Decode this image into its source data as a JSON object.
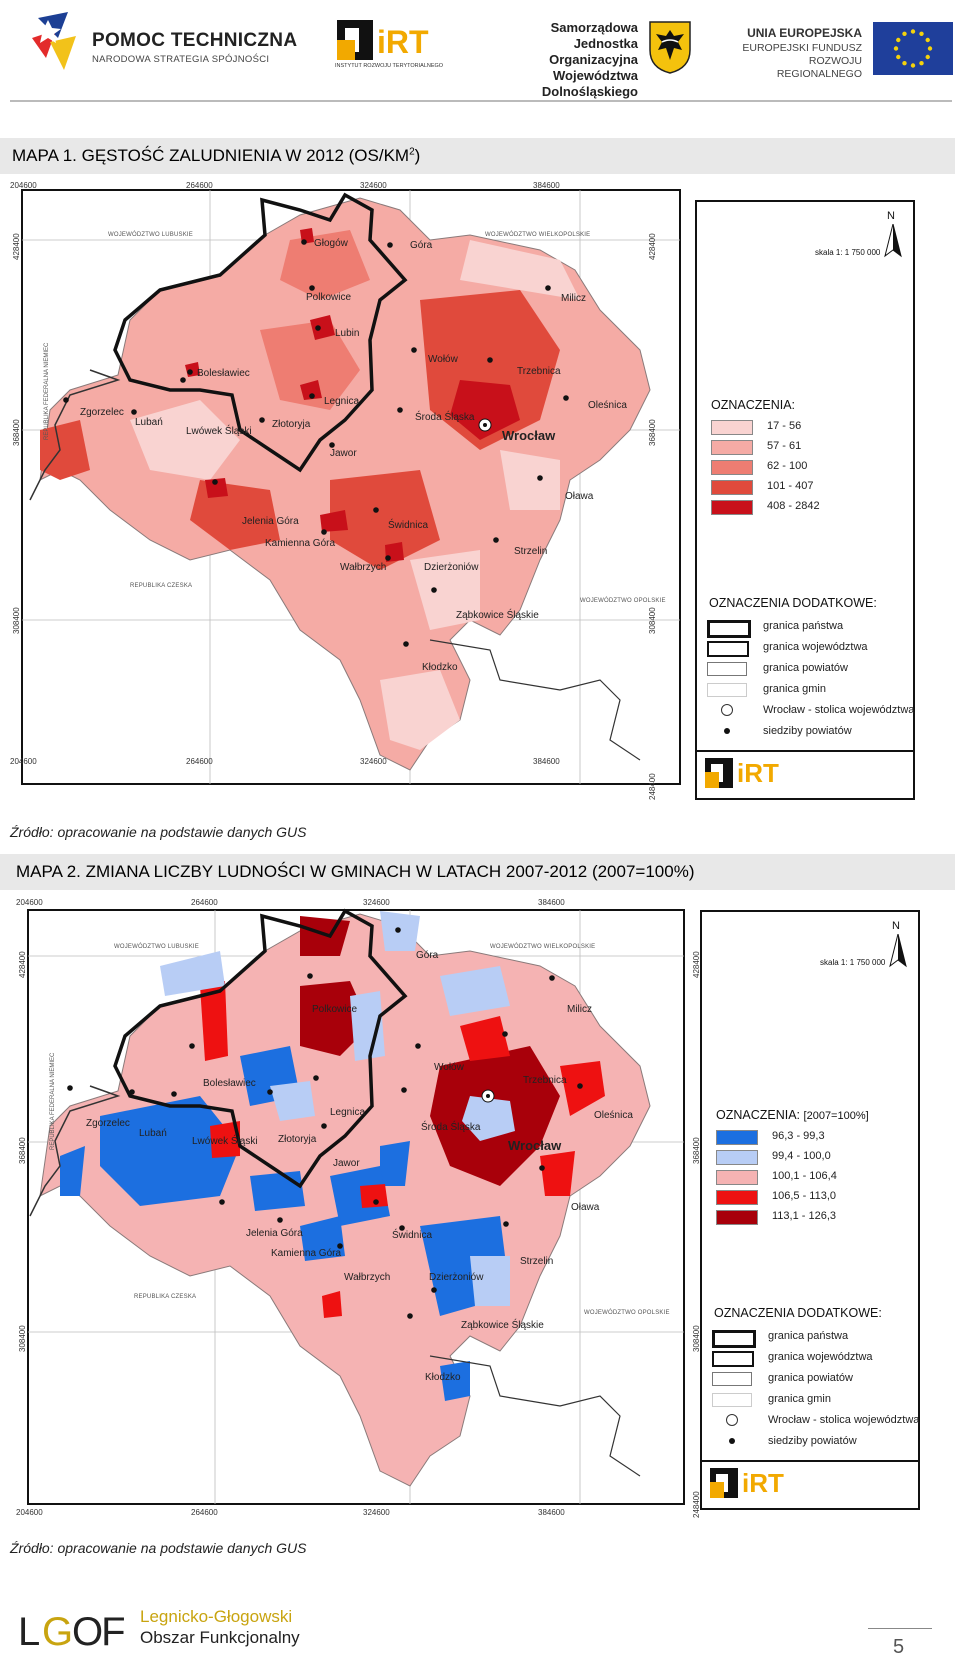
{
  "header": {
    "pomoc_title": "POMOC TECHNICZNA",
    "pomoc_sub": "NARODOWA STRATEGIA SPÓJNOŚCI",
    "irt_text": "iRT",
    "irt_sub": "INSTYTUT ROZWOJU TERYTORIALNEGO",
    "jo_lines": [
      "Samorządowa",
      "Jednostka Organizacyjna",
      "Województwa Dolnośląskiego"
    ],
    "eu_title": "UNIA EUROPEJSKA",
    "eu_sub": [
      "EUROPEJSKI FUNDUSZ",
      "ROZWOJU REGIONALNEGO"
    ]
  },
  "map1": {
    "title": "MAPA 1. GĘSTOŚĆ ZALUDNIENIA W 2012 (OS/KM",
    "title_sup": "2",
    "title_end": ")",
    "source": "Źródło: opracowanie na podstawie danych GUS",
    "ticks_x": [
      "204600",
      "264600",
      "324600",
      "384600"
    ],
    "ticks_y": [
      "428400",
      "368400",
      "308400",
      "248400"
    ],
    "scale": "skala 1: 1 750 000",
    "north": "N",
    "legend_title": "OZNACZENIA:",
    "legend": [
      {
        "label": "17 - 56",
        "color": "#f9d3d1"
      },
      {
        "label": "57 - 61",
        "color": "#f5aba5"
      },
      {
        "label": "62 - 100",
        "color": "#ee7d72"
      },
      {
        "label": "101 - 407",
        "color": "#e04a3c"
      },
      {
        "label": "408 - 2842",
        "color": "#c8101a"
      }
    ],
    "legend2_title": "OZNACZENIA DODATKOWE:",
    "legend2": [
      "granica państwa",
      "granica województwa",
      "granica powiatów",
      "granica gmin",
      "Wrocław - stolica województwa",
      "siedziby powiatów"
    ],
    "legend_logo": "iRT",
    "cities": [
      "Głogów",
      "Góra",
      "Polkowice",
      "Milicz",
      "Lubin",
      "Wołów",
      "Trzebnica",
      "Bolesławiec",
      "Legnica",
      "Oleśnica",
      "Zgorzelec",
      "Lubań",
      "Lwówek Śląski",
      "Złotoryja",
      "Środa Śląska",
      "Wrocław",
      "Jawor",
      "Oława",
      "Jelenia Góra",
      "Świdnica",
      "Kamienna Góra",
      "Strzelin",
      "Wałbrzych",
      "Dzierżoniów",
      "Ząbkowice Śląskie",
      "Kłodzko"
    ],
    "regions": [
      "WOJEWÓDZTWO LUBUSKIE",
      "WOJEWÓDZTWO WIELKOPOLSKIE",
      "REPUBLIKA FEDERALNA NIEMIEC",
      "REPUBLIKA CZESKA",
      "WOJEWÓDZTWO OPOLSKIE"
    ]
  },
  "map2": {
    "title": "MAPA 2. ZMIANA LICZBY LUDNOŚCI W GMINACH W LATACH 2007-2012 (2007=100%)",
    "source": "Źródło: opracowanie na podstawie danych GUS",
    "ticks_x": [
      "204600",
      "264600",
      "324600",
      "384600"
    ],
    "ticks_y": [
      "428400",
      "368400",
      "308400",
      "248400"
    ],
    "scale": "skala 1: 1 750 000",
    "north": "N",
    "legend_title": "OZNACZENIA:",
    "legend_note": "[2007=100%]",
    "legend": [
      {
        "label": "96,3 - 99,3",
        "color": "#1c6fe0"
      },
      {
        "label": "99,4 - 100,0",
        "color": "#b8cdf5"
      },
      {
        "label": "100,1 - 106,4",
        "color": "#f5b3b3"
      },
      {
        "label": "106,5 - 113,0",
        "color": "#ee1111"
      },
      {
        "label": "113,1 - 126,3",
        "color": "#a8000a"
      }
    ],
    "legend2_title": "OZNACZENIA DODATKOWE:",
    "legend2": [
      "granica państwa",
      "granica województwa",
      "granica powiatów",
      "granica gmin",
      "Wrocław - stolica województwa",
      "siedziby powiatów"
    ],
    "legend_logo": "iRT",
    "cities": [
      "Góra",
      "Polkowice",
      "Milicz",
      "Wołów",
      "Trzebnica",
      "Bolesławiec",
      "Legnica",
      "Oleśnica",
      "Zgorzelec",
      "Lubań",
      "Lwówek Śląski",
      "Złotoryja",
      "Środa Śląska",
      "Wrocław",
      "Jawor",
      "Oława",
      "Jelenia Góra",
      "Świdnica",
      "Kamienna Góra",
      "Strzelin",
      "Wałbrzych",
      "Dzierżoniów",
      "Ząbkowice Śląskie",
      "Kłodzko"
    ],
    "regions": [
      "WOJEWÓDZTWO LUBUSKIE",
      "WOJEWÓDZTWO WIELKOPOLSKIE",
      "REPUBLIKA FEDERALNA NIEMIEC",
      "REPUBLIKA CZESKA",
      "WOJEWÓDZTWO OPOLSKIE"
    ]
  },
  "footer": {
    "logo_text": "LGOF",
    "line1": "Legnicko-Głogowski",
    "line2": "Obszar Funkcjonalny",
    "page": "5"
  }
}
